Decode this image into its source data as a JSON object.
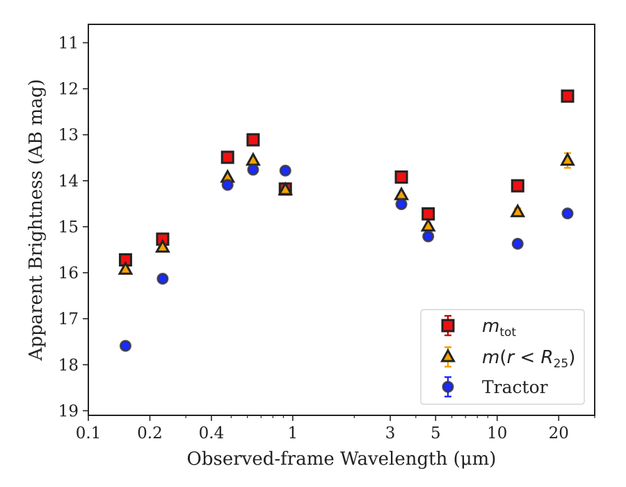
{
  "chart_data": {
    "type": "scatter",
    "xlabel": "Observed-frame Wavelength (μm)",
    "ylabel": "Apparent Brightness (AB mag)",
    "xscale": "log",
    "xlim": [
      0.1,
      30
    ],
    "ylim": [
      19.1,
      10.6
    ],
    "y_inverted": true,
    "x_ticks": [
      {
        "value": 0.1,
        "label": "0.1"
      },
      {
        "value": 0.2,
        "label": "0.2"
      },
      {
        "value": 0.4,
        "label": "0.4"
      },
      {
        "value": 1,
        "label": "1"
      },
      {
        "value": 3,
        "label": "3"
      },
      {
        "value": 5,
        "label": "5"
      },
      {
        "value": 10,
        "label": "10"
      },
      {
        "value": 20,
        "label": "20"
      }
    ],
    "y_ticks": [
      {
        "value": 11,
        "label": "11"
      },
      {
        "value": 12,
        "label": "12"
      },
      {
        "value": 13,
        "label": "13"
      },
      {
        "value": 14,
        "label": "14"
      },
      {
        "value": 15,
        "label": "15"
      },
      {
        "value": 16,
        "label": "16"
      },
      {
        "value": 17,
        "label": "17"
      },
      {
        "value": 18,
        "label": "18"
      },
      {
        "value": 19,
        "label": "19"
      }
    ],
    "grid": false,
    "legend_position": "lower-right",
    "series": [
      {
        "name": "m_tot",
        "marker": "square",
        "color": "#ee1111",
        "errcolor": "#cc0000",
        "points": [
          {
            "x": 0.152,
            "y": 15.72,
            "err": 0.08
          },
          {
            "x": 0.231,
            "y": 15.27,
            "err": 0.07
          },
          {
            "x": 0.48,
            "y": 13.49,
            "err": 0.03
          },
          {
            "x": 0.64,
            "y": 13.11,
            "err": 0.03
          },
          {
            "x": 0.92,
            "y": 14.18,
            "err": 0.03
          },
          {
            "x": 3.4,
            "y": 13.92,
            "err": 0.03
          },
          {
            "x": 4.6,
            "y": 14.72,
            "err": 0.04
          },
          {
            "x": 12.6,
            "y": 14.11,
            "err": 0.04
          },
          {
            "x": 22.1,
            "y": 12.16,
            "err": 0.05
          }
        ]
      },
      {
        "name": "m(r < R25)",
        "marker": "triangle",
        "color": "#f5a300",
        "errcolor": "#f0a000",
        "points": [
          {
            "x": 0.152,
            "y": 15.93,
            "err": 0.05
          },
          {
            "x": 0.231,
            "y": 15.45,
            "err": 0.05
          },
          {
            "x": 0.48,
            "y": 13.93,
            "err": 0.03
          },
          {
            "x": 0.64,
            "y": 13.56,
            "err": 0.03
          },
          {
            "x": 0.92,
            "y": 14.2,
            "err": 0.03
          },
          {
            "x": 3.4,
            "y": 14.31,
            "err": 0.03
          },
          {
            "x": 4.6,
            "y": 14.99,
            "err": 0.03
          },
          {
            "x": 12.6,
            "y": 14.68,
            "err": 0.08
          },
          {
            "x": 22.1,
            "y": 13.56,
            "err": 0.16
          }
        ]
      },
      {
        "name": "Tractor",
        "marker": "circle",
        "color": "#1a2bff",
        "errcolor": "#1a2bff",
        "points": [
          {
            "x": 0.152,
            "y": 17.59,
            "err": 0.05
          },
          {
            "x": 0.231,
            "y": 16.13,
            "err": 0.06
          },
          {
            "x": 0.48,
            "y": 14.09,
            "err": 0.04
          },
          {
            "x": 0.64,
            "y": 13.76,
            "err": 0.04
          },
          {
            "x": 0.92,
            "y": 13.78,
            "err": 0.06
          },
          {
            "x": 3.4,
            "y": 14.51,
            "err": 0.04
          },
          {
            "x": 4.6,
            "y": 15.21,
            "err": 0.04
          },
          {
            "x": 12.6,
            "y": 15.37,
            "err": 0.04
          },
          {
            "x": 22.1,
            "y": 14.71,
            "err": 0.05
          }
        ]
      }
    ]
  }
}
